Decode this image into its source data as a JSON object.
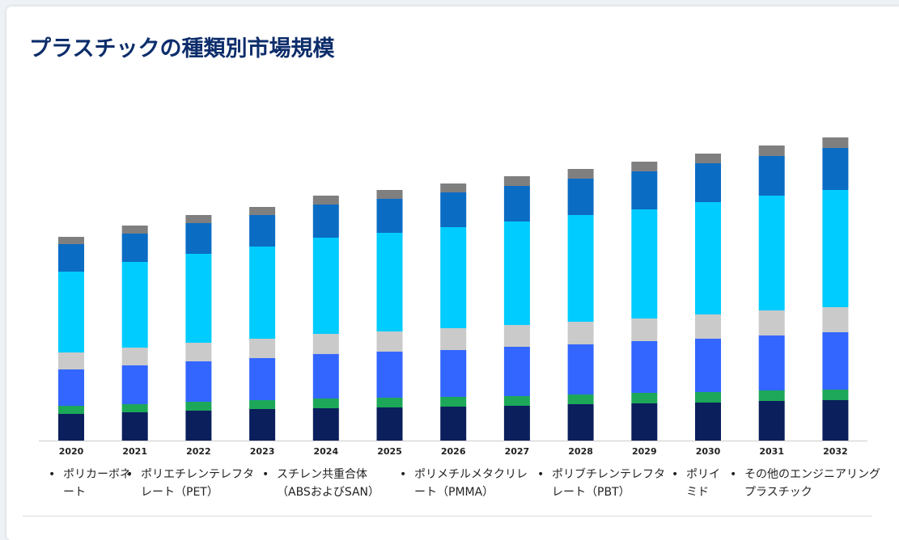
{
  "chart_data": {
    "type": "stacked_bar",
    "title": "プラスチックの種類別市場規模",
    "categories": [
      "2020",
      "2021",
      "2022",
      "2023",
      "2024",
      "2025",
      "2026",
      "2027",
      "2028",
      "2029",
      "2030",
      "2031",
      "2032"
    ],
    "series": [
      {
        "name": "ポリカーボネート",
        "color": "#0b1f5c",
        "values": [
          33,
          35,
          37,
          39,
          40,
          41,
          42,
          43,
          45,
          46,
          47,
          49,
          50
        ]
      },
      {
        "name": "ポリエチレンテレフタレート（PET）",
        "color": "#1ca858",
        "values": [
          10,
          10,
          11,
          11,
          12,
          12,
          12,
          12,
          12,
          13,
          13,
          13,
          13
        ]
      },
      {
        "name": "スチレン共重合体（ABSおよびSAN）",
        "color": "#3366ff",
        "values": [
          45,
          48,
          50,
          52,
          55,
          57,
          58,
          61,
          62,
          64,
          66,
          68,
          71
        ]
      },
      {
        "name": "ポリメチルメタクリレート（PMMA）",
        "color": "#cacaca",
        "values": [
          21,
          22,
          23,
          24,
          25,
          25,
          27,
          27,
          28,
          28,
          30,
          31,
          31
        ]
      },
      {
        "name": "ポリブチレンテレフタレート（PBT）",
        "color": "#00ccff",
        "values": [
          100,
          106,
          110,
          114,
          119,
          122,
          125,
          128,
          132,
          135,
          139,
          142,
          145
        ]
      },
      {
        "name": "ポリイミド",
        "color": "#0b6cc4",
        "values": [
          34,
          35,
          38,
          39,
          41,
          42,
          43,
          44,
          45,
          47,
          48,
          49,
          52
        ]
      },
      {
        "name": "その他のエンジニアリングプラスチック",
        "color": "#7f7f7f",
        "values": [
          9,
          10,
          10,
          10,
          11,
          11,
          11,
          12,
          12,
          12,
          12,
          13,
          13
        ]
      }
    ]
  }
}
